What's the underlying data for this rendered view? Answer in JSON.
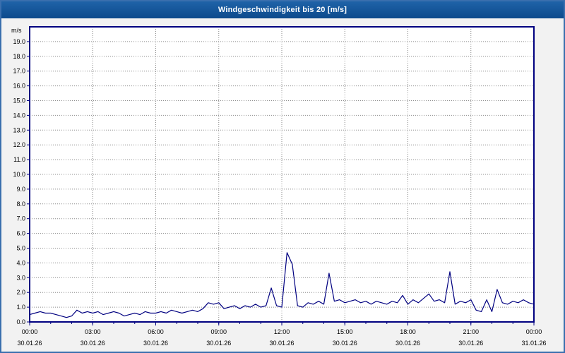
{
  "title": "Windgeschwindigkeit bis 20 [m/s]",
  "colors": {
    "title_bar": "#0d4a8c",
    "title_text": "#ffffff",
    "plot_border": "#000080",
    "line": "#000080",
    "grid": "#8c8c8c",
    "background": "#f2f2f2",
    "plot_background": "#ffffff",
    "tick_text": "#000000"
  },
  "chart_data": {
    "type": "line",
    "title": "Windgeschwindigkeit bis 20 [m/s]",
    "xlabel": "",
    "ylabel": "m/s",
    "ylim": [
      0,
      20
    ],
    "y_tick_step": 1.0,
    "y_tick_labels": [
      "0.0",
      "1.0",
      "2.0",
      "3.0",
      "4.0",
      "5.0",
      "6.0",
      "7.0",
      "8.0",
      "9.0",
      "10.0",
      "11.0",
      "12.0",
      "13.0",
      "14.0",
      "15.0",
      "16.0",
      "17.0",
      "18.0",
      "19.0"
    ],
    "x_hours_range": [
      0,
      24
    ],
    "x_minor_tick_hours": 1,
    "x_ticks": [
      {
        "hour": 0,
        "time": "00:00",
        "date": "30.01.26"
      },
      {
        "hour": 3,
        "time": "03:00",
        "date": "30.01.26"
      },
      {
        "hour": 6,
        "time": "06:00",
        "date": "30.01.26"
      },
      {
        "hour": 9,
        "time": "09:00",
        "date": "30.01.26"
      },
      {
        "hour": 12,
        "time": "12:00",
        "date": "30.01.26"
      },
      {
        "hour": 15,
        "time": "15:00",
        "date": "30.01.26"
      },
      {
        "hour": 18,
        "time": "18:00",
        "date": "30.01.26"
      },
      {
        "hour": 21,
        "time": "21:00",
        "date": "30.01.26"
      },
      {
        "hour": 24,
        "time": "00:00",
        "date": "31.01.26"
      }
    ],
    "grid": "dotted",
    "legend": "none",
    "series": [
      {
        "name": "Windgeschwindigkeit",
        "step_hours": 0.25,
        "values": [
          0.5,
          0.6,
          0.7,
          0.6,
          0.6,
          0.5,
          0.4,
          0.3,
          0.4,
          0.8,
          0.6,
          0.7,
          0.6,
          0.7,
          0.5,
          0.6,
          0.7,
          0.6,
          0.4,
          0.5,
          0.6,
          0.5,
          0.7,
          0.6,
          0.6,
          0.7,
          0.6,
          0.8,
          0.7,
          0.6,
          0.7,
          0.8,
          0.7,
          0.9,
          1.3,
          1.2,
          1.3,
          0.9,
          1.0,
          1.1,
          0.9,
          1.1,
          1.0,
          1.2,
          1.0,
          1.1,
          2.3,
          1.1,
          1.0,
          4.7,
          3.9,
          1.1,
          1.0,
          1.3,
          1.2,
          1.4,
          1.2,
          3.3,
          1.4,
          1.5,
          1.3,
          1.4,
          1.5,
          1.3,
          1.4,
          1.2,
          1.4,
          1.3,
          1.2,
          1.4,
          1.3,
          1.8,
          1.2,
          1.5,
          1.3,
          1.6,
          1.9,
          1.4,
          1.5,
          1.3,
          3.4,
          1.2,
          1.4,
          1.3,
          1.5,
          0.8,
          0.7,
          1.5,
          0.7,
          2.2,
          1.3,
          1.2,
          1.4,
          1.3,
          1.5,
          1.3,
          1.2
        ]
      }
    ]
  }
}
